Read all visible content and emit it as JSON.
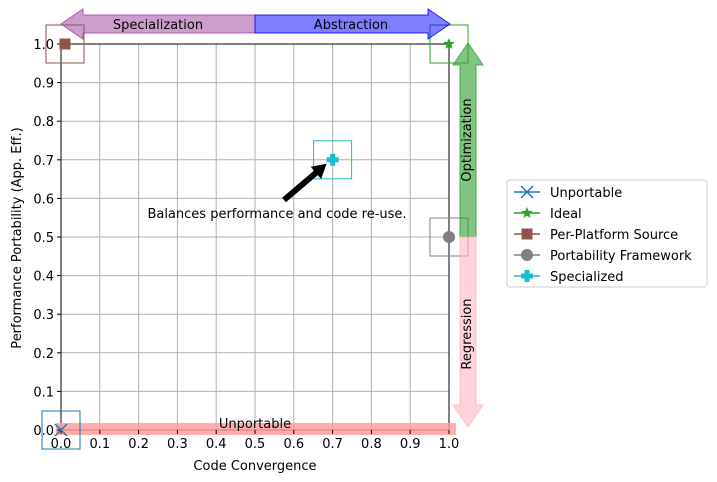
{
  "chart_data": {
    "type": "scatter",
    "xlabel": "Code Convergence",
    "ylabel": "Performance Portability (App. Eff.)",
    "xlim": [
      0.0,
      1.0
    ],
    "ylim": [
      0.0,
      1.0
    ],
    "xticks": [
      "0.0",
      "0.1",
      "0.2",
      "0.3",
      "0.4",
      "0.5",
      "0.6",
      "0.7",
      "0.8",
      "0.9",
      "1.0"
    ],
    "yticks": [
      "0.0",
      "0.1",
      "0.2",
      "0.3",
      "0.4",
      "0.5",
      "0.6",
      "0.7",
      "0.8",
      "0.9",
      "1.0"
    ],
    "grid": true,
    "legend_position": "right",
    "series": [
      {
        "name": "Unportable",
        "x": 0.0,
        "y": 0.0,
        "marker": "x",
        "color": "#1f77b4"
      },
      {
        "name": "Ideal",
        "x": 1.0,
        "y": 1.0,
        "marker": "star",
        "color": "#2ca02c"
      },
      {
        "name": "Per-Platform Source",
        "x": 0.0,
        "y": 1.0,
        "marker": "square",
        "color": "#8c564b"
      },
      {
        "name": "Portability Framework",
        "x": 1.0,
        "y": 0.5,
        "marker": "circle",
        "color": "#7f7f7f"
      },
      {
        "name": "Specialized",
        "x": 0.7,
        "y": 0.7,
        "marker": "plus",
        "color": "#17becf"
      }
    ],
    "arrows": {
      "specialization": {
        "label": "Specialization",
        "color": "#9b3d9b"
      },
      "abstraction": {
        "label": "Abstraction",
        "color": "#0000ff"
      },
      "optimization": {
        "label": "Optimization",
        "color": "#2ca02c"
      },
      "regression": {
        "label": "Regression",
        "color": "#ffb6c1"
      }
    },
    "annotations": {
      "specialized_note": "Balances performance and code re-use.",
      "unportable_bar": "Unportable"
    }
  }
}
